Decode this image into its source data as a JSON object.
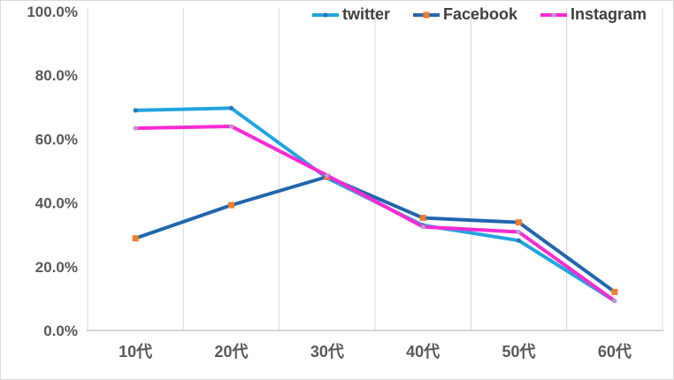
{
  "chart_data": {
    "type": "line",
    "title": "",
    "categories": [
      "10代",
      "20代",
      "30代",
      "40代",
      "50代",
      "60代"
    ],
    "series": [
      {
        "name": "twitter",
        "color": "#21A5DF",
        "marker": "circle",
        "marker_color": "#2E75B6",
        "values": [
          69.0,
          69.7,
          47.8,
          33.0,
          28.2,
          9.3
        ]
      },
      {
        "name": "Facebook",
        "color": "#2166AE",
        "marker": "square",
        "marker_color": "#ED7D31",
        "values": [
          28.9,
          39.3,
          48.2,
          35.3,
          33.9,
          12.1
        ]
      },
      {
        "name": "Instagram",
        "color": "#F92BD3",
        "marker": "circle",
        "marker_color": "#B89BD0",
        "values": [
          63.4,
          64.0,
          48.6,
          32.5,
          30.9,
          9.3
        ]
      }
    ],
    "ylim": [
      0,
      100
    ],
    "yticks": [
      {
        "value": 0,
        "label": "0.0%"
      },
      {
        "value": 20,
        "label": "20.0%"
      },
      {
        "value": 40,
        "label": "40.0%"
      },
      {
        "value": 60,
        "label": "60.0%"
      },
      {
        "value": 80,
        "label": "80.0%"
      },
      {
        "value": 100,
        "label": "100.0%"
      }
    ],
    "xlabel": "",
    "ylabel": "",
    "legend_position": "top-right",
    "grid": "vertical-only",
    "grid_color": "#d9d9d9",
    "axis_line_color": "#c9c7c7",
    "tick_text_color": "#595959",
    "legend_text_color": "#404040",
    "background_color": "#ffffff",
    "border_color": "#d9d9d9"
  }
}
